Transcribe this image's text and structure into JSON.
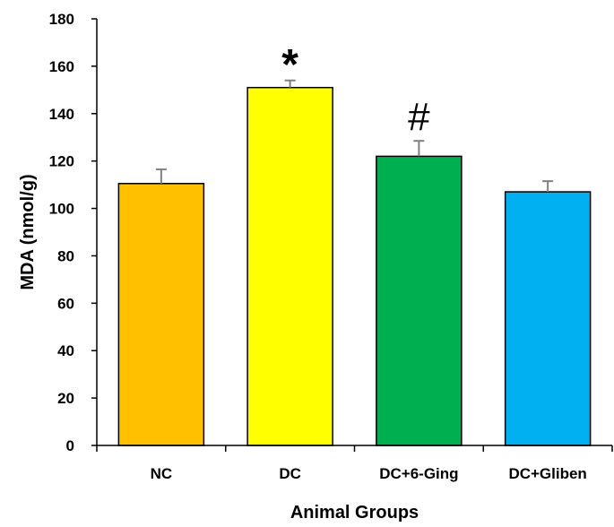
{
  "chart_data": {
    "type": "bar",
    "categories": [
      "NC",
      "DC",
      "DC+6-Ging",
      "DC+Gliben"
    ],
    "values": [
      110.5,
      151.0,
      122.0,
      107.0
    ],
    "errors": [
      6.0,
      3.0,
      6.5,
      4.5
    ],
    "colors": [
      "#FFC000",
      "#FFFF00",
      "#00B050",
      "#00B0F0"
    ],
    "annotations": [
      "",
      "*",
      "#",
      ""
    ],
    "xlabel": "Animal Groups",
    "ylabel": "MDA (nmol/g)",
    "ylim": [
      0,
      180
    ],
    "yticks": [
      0,
      20,
      40,
      60,
      80,
      100,
      120,
      140,
      160,
      180
    ],
    "grid": false,
    "legend": "none"
  }
}
